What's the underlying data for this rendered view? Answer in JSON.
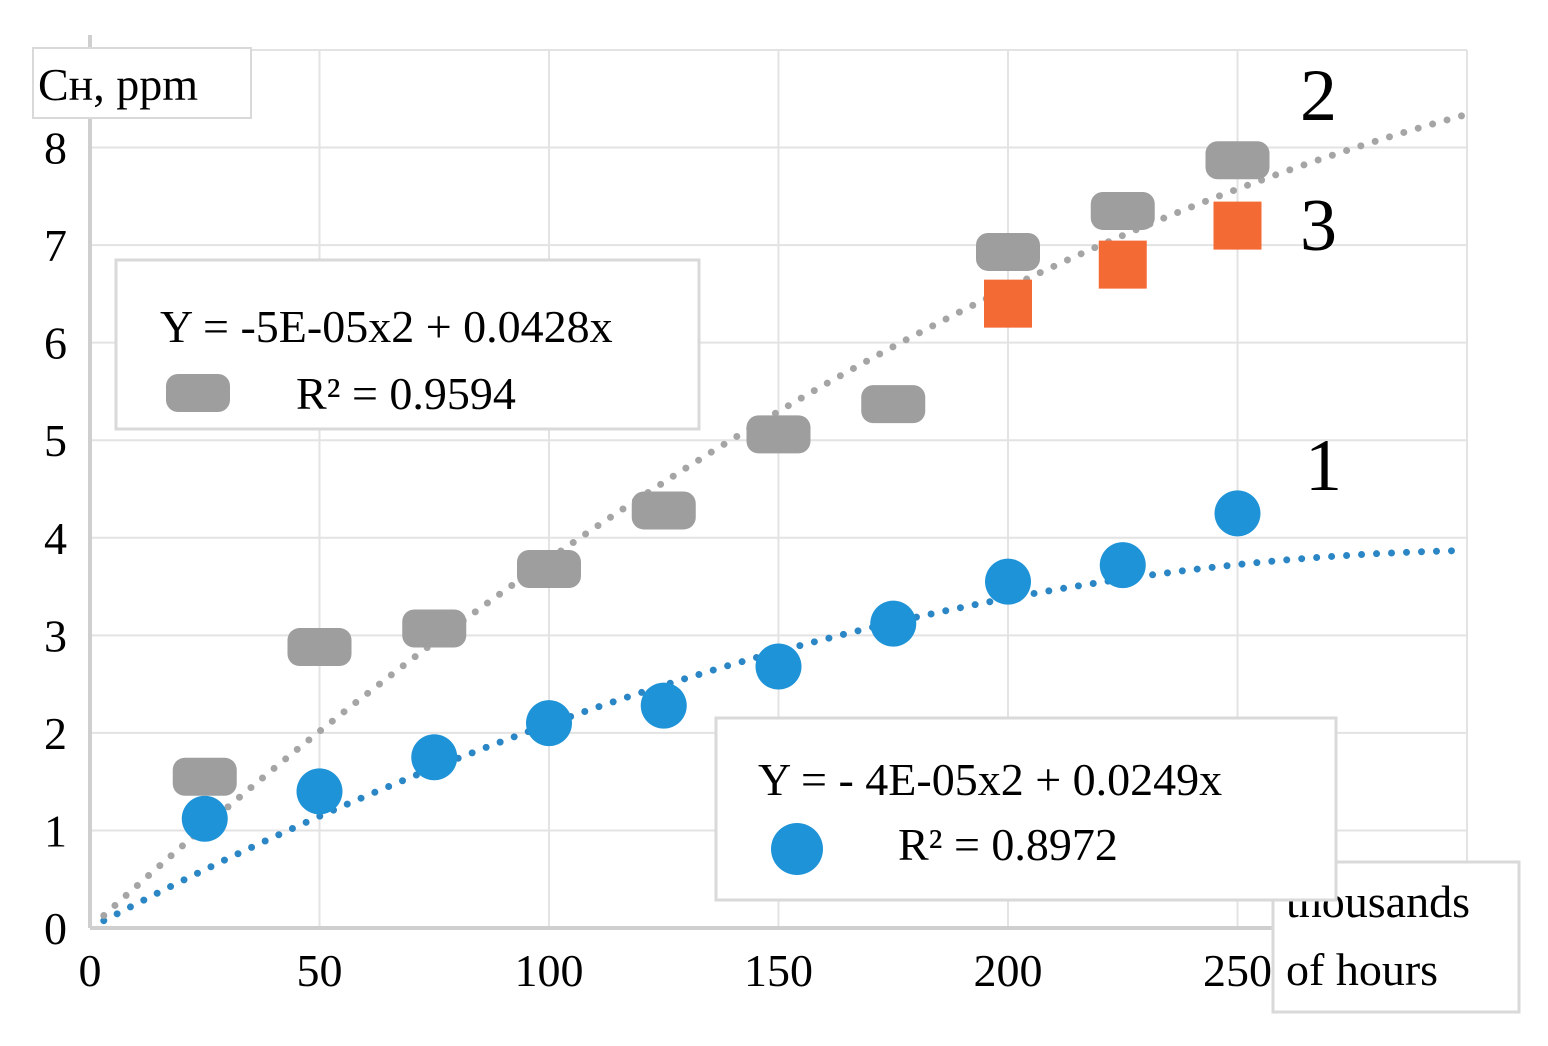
{
  "chart_data": {
    "type": "scatter",
    "title": "",
    "xlabel": "thousands of hours",
    "xlabel_lines": [
      "thousands",
      "of hours"
    ],
    "ylabel": "Cн, ppm",
    "xlim": [
      0,
      300
    ],
    "ylim": [
      0,
      9
    ],
    "x_ticks": [
      0,
      50,
      100,
      150,
      200,
      250
    ],
    "y_ticks": [
      0,
      1,
      2,
      3,
      4,
      5,
      6,
      7,
      8
    ],
    "grid": true,
    "series": [
      {
        "name": "1",
        "marker": "circle",
        "color": "#1f93d7",
        "x": [
          25,
          50,
          75,
          100,
          125,
          150,
          175,
          200,
          225,
          250
        ],
        "y": [
          1.12,
          1.4,
          1.75,
          2.1,
          2.28,
          2.68,
          3.12,
          3.55,
          3.72,
          4.25
        ],
        "trendline": {
          "type": "polynomial",
          "equation": "Y = - 4E-05x2 + 0.0249x",
          "r2": "R² = 0.8972",
          "a": -4e-05,
          "b": 0.0249,
          "x_range": [
            0,
            300
          ],
          "color": "#2b86c5"
        }
      },
      {
        "name": "2",
        "marker": "rounded-rect",
        "color": "#9e9e9e",
        "x": [
          25,
          50,
          75,
          100,
          125,
          150,
          175,
          200,
          225,
          250
        ],
        "y": [
          1.55,
          2.88,
          3.07,
          3.68,
          4.28,
          5.06,
          5.37,
          6.93,
          7.35,
          7.87
        ],
        "trendline": {
          "type": "polynomial",
          "equation": "Y = -5E-05x2 + 0.0428x",
          "r2": "R² = 0.9594",
          "a": -5e-05,
          "b": 0.0428,
          "x_range": [
            0,
            300
          ],
          "color": "#a5a5a5"
        }
      },
      {
        "name": "3",
        "marker": "square",
        "color": "#f36a35",
        "x": [
          200,
          225,
          250
        ],
        "y": [
          6.4,
          6.8,
          7.2
        ]
      }
    ],
    "annotations": [
      "2",
      "3",
      "1"
    ],
    "legends": [
      {
        "equation": "Y = -5E-05x2 + 0.0428x",
        "r2": "R² = 0.9594",
        "marker": "rounded-rect",
        "color": "#9e9e9e",
        "placement": "upper-left"
      },
      {
        "equation": "Y = - 4E-05x2 + 0.0249x",
        "r2": "R² = 0.8972",
        "marker": "circle",
        "color": "#1f93d7",
        "placement": "lower-right"
      }
    ]
  }
}
